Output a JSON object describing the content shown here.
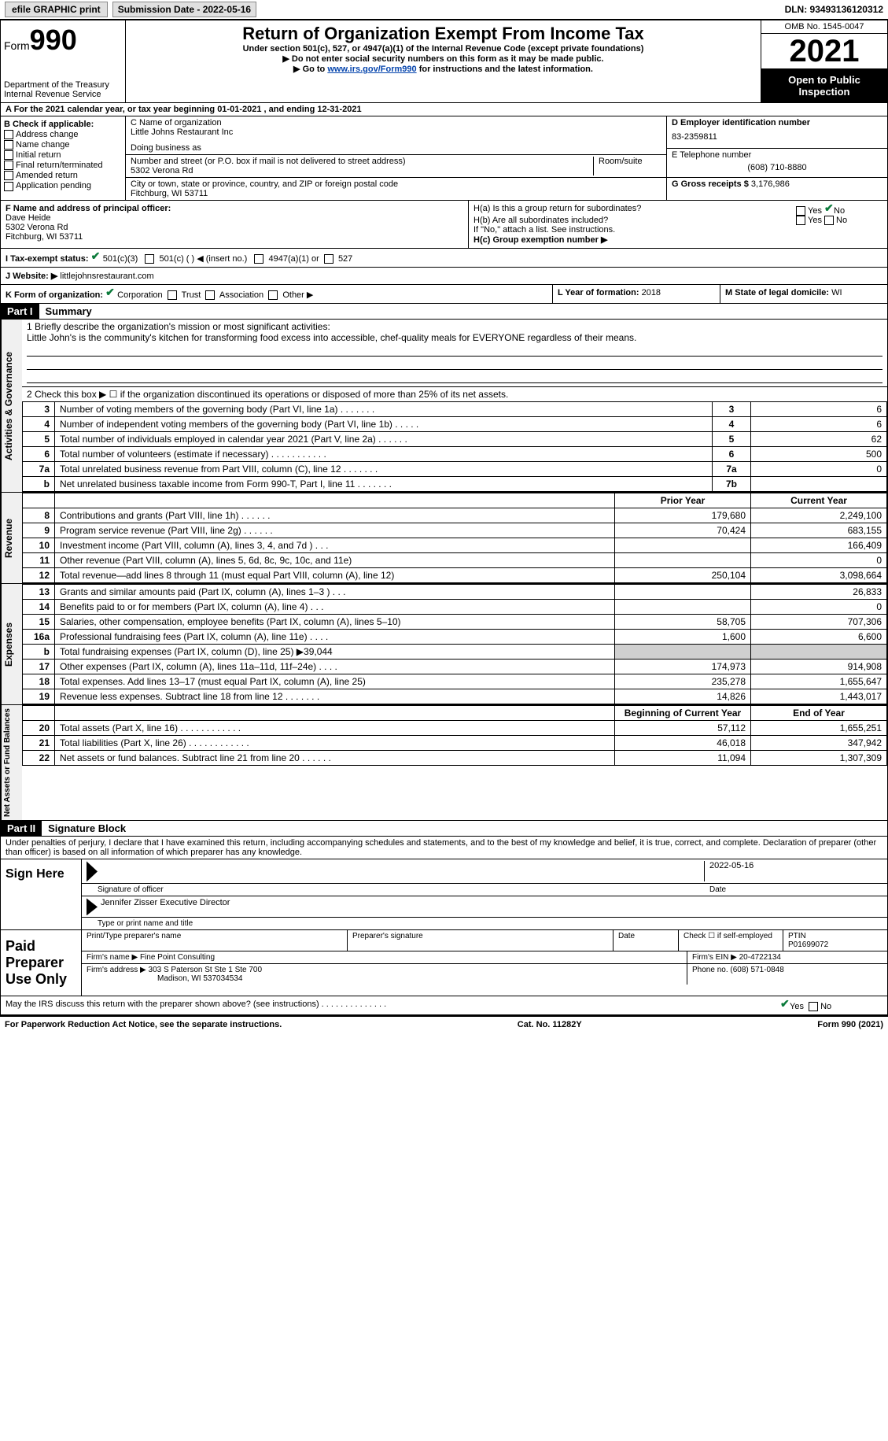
{
  "top": {
    "efile": "efile GRAPHIC print",
    "submission": "Submission Date - 2022-05-16",
    "dln": "DLN: 93493136120312"
  },
  "header": {
    "form_word": "Form",
    "form_num": "990",
    "dept": "Department of the Treasury",
    "irs": "Internal Revenue Service",
    "title": "Return of Organization Exempt From Income Tax",
    "sub1": "Under section 501(c), 527, or 4947(a)(1) of the Internal Revenue Code (except private foundations)",
    "sub2": "▶ Do not enter social security numbers on this form as it may be made public.",
    "sub3_a": "▶ Go to ",
    "sub3_link": "www.irs.gov/Form990",
    "sub3_b": " for instructions and the latest information.",
    "omb": "OMB No. 1545-0047",
    "year": "2021",
    "inspect": "Open to Public Inspection"
  },
  "row_a": "A For the 2021 calendar year, or tax year beginning 01-01-2021    , and ending 12-31-2021",
  "b": {
    "label": "B Check if applicable:",
    "items": [
      "Address change",
      "Name change",
      "Initial return",
      "Final return/terminated",
      "Amended return",
      "Application pending"
    ]
  },
  "c": {
    "name_lbl": "C Name of organization",
    "name": "Little Johns Restaurant Inc",
    "dba_lbl": "Doing business as",
    "dba": "",
    "addr_lbl": "Number and street (or P.O. box if mail is not delivered to street address)",
    "room_lbl": "Room/suite",
    "addr": "5302 Verona Rd",
    "city_lbl": "City or town, state or province, country, and ZIP or foreign postal code",
    "city": "Fitchburg, WI  53711"
  },
  "d": {
    "ein_lbl": "D Employer identification number",
    "ein": "83-2359811",
    "tel_lbl": "E Telephone number",
    "tel": "(608) 710-8880",
    "gross_lbl": "G Gross receipts $",
    "gross": "3,176,986"
  },
  "f": {
    "lbl": "F  Name and address of principal officer:",
    "name": "Dave Heide",
    "addr1": "5302 Verona Rd",
    "addr2": "Fitchburg, WI  53711"
  },
  "h": {
    "a_lbl": "H(a)  Is this a group return for subordinates?",
    "b_lbl": "H(b)  Are all subordinates included?",
    "b_note": "If \"No,\" attach a list. See instructions.",
    "c_lbl": "H(c)  Group exemption number ▶",
    "yes": "Yes",
    "no": "No"
  },
  "i": {
    "lbl": "I    Tax-exempt status:",
    "opt1": "501(c)(3)",
    "opt2": "501(c) (  ) ◀ (insert no.)",
    "opt3": "4947(a)(1) or",
    "opt4": "527"
  },
  "j": {
    "lbl": "J   Website: ▶",
    "val": "littlejohnsrestaurant.com"
  },
  "k": {
    "lbl": "K Form of organization:",
    "opts": [
      "Corporation",
      "Trust",
      "Association",
      "Other ▶"
    ],
    "l_lbl": "L Year of formation:",
    "l_val": "2018",
    "m_lbl": "M State of legal domicile:",
    "m_val": "WI"
  },
  "part1": {
    "hdr": "Part I",
    "title": "Summary",
    "line1_lbl": "1  Briefly describe the organization's mission or most significant activities:",
    "line1_val": "Little John's is the community's kitchen for transforming food excess into accessible, chef-quality meals for EVERYONE regardless of their means.",
    "line2": "2   Check this box ▶ ☐  if the organization discontinued its operations or disposed of more than 25% of its net assets.",
    "vert_ag": "Activities & Governance",
    "vert_rev": "Revenue",
    "vert_exp": "Expenses",
    "vert_net": "Net Assets or Fund Balances",
    "rows_ag": [
      {
        "n": "3",
        "d": "Number of voting members of the governing body (Part VI, line 1a)   .    .    .    .    .    .    .",
        "box": "3",
        "v": "6"
      },
      {
        "n": "4",
        "d": "Number of independent voting members of the governing body (Part VI, line 1b)   .    .    .    .    .",
        "box": "4",
        "v": "6"
      },
      {
        "n": "5",
        "d": "Total number of individuals employed in calendar year 2021 (Part V, line 2a)   .    .    .    .    .    .",
        "box": "5",
        "v": "62"
      },
      {
        "n": "6",
        "d": "Total number of volunteers (estimate if necessary)    .    .    .    .    .    .    .    .    .    .    .",
        "box": "6",
        "v": "500"
      },
      {
        "n": "7a",
        "d": "Total unrelated business revenue from Part VIII, column (C), line 12   .    .    .    .    .    .    .",
        "box": "7a",
        "v": "0"
      },
      {
        "n": "b",
        "d": "Net unrelated business taxable income from Form 990-T, Part I, line 11   .    .    .    .    .    .    .",
        "box": "7b",
        "v": ""
      }
    ],
    "col_prior": "Prior Year",
    "col_current": "Current Year",
    "rows_rev": [
      {
        "n": "8",
        "d": "Contributions and grants (Part VIII, line 1h)    .    .    .    .    .    .",
        "p": "179,680",
        "c": "2,249,100"
      },
      {
        "n": "9",
        "d": "Program service revenue (Part VIII, line 2g)    .    .    .    .    .    .",
        "p": "70,424",
        "c": "683,155"
      },
      {
        "n": "10",
        "d": "Investment income (Part VIII, column (A), lines 3, 4, and 7d )    .    .    .",
        "p": "",
        "c": "166,409"
      },
      {
        "n": "11",
        "d": "Other revenue (Part VIII, column (A), lines 5, 6d, 8c, 9c, 10c, and 11e)",
        "p": "",
        "c": "0"
      },
      {
        "n": "12",
        "d": "Total revenue—add lines 8 through 11 (must equal Part VIII, column (A), line 12)",
        "p": "250,104",
        "c": "3,098,664"
      }
    ],
    "rows_exp": [
      {
        "n": "13",
        "d": "Grants and similar amounts paid (Part IX, column (A), lines 1–3 )   .    .    .",
        "p": "",
        "c": "26,833"
      },
      {
        "n": "14",
        "d": "Benefits paid to or for members (Part IX, column (A), line 4)   .    .    .",
        "p": "",
        "c": "0"
      },
      {
        "n": "15",
        "d": "Salaries, other compensation, employee benefits (Part IX, column (A), lines 5–10)",
        "p": "58,705",
        "c": "707,306"
      },
      {
        "n": "16a",
        "d": "Professional fundraising fees (Part IX, column (A), line 11e)    .    .    .    .",
        "p": "1,600",
        "c": "6,600"
      },
      {
        "n": "b",
        "d": "Total fundraising expenses (Part IX, column (D), line 25) ▶39,044",
        "p": "__grey__",
        "c": "__grey__"
      },
      {
        "n": "17",
        "d": "Other expenses (Part IX, column (A), lines 11a–11d, 11f–24e)    .    .    .    .",
        "p": "174,973",
        "c": "914,908"
      },
      {
        "n": "18",
        "d": "Total expenses. Add lines 13–17 (must equal Part IX, column (A), line 25)",
        "p": "235,278",
        "c": "1,655,647"
      },
      {
        "n": "19",
        "d": "Revenue less expenses. Subtract line 18 from line 12   .    .    .    .    .    .    .",
        "p": "14,826",
        "c": "1,443,017"
      }
    ],
    "col_beg": "Beginning of Current Year",
    "col_end": "End of Year",
    "rows_net": [
      {
        "n": "20",
        "d": "Total assets (Part X, line 16)   .    .    .    .    .    .    .    .    .    .    .    .",
        "p": "57,112",
        "c": "1,655,251"
      },
      {
        "n": "21",
        "d": "Total liabilities (Part X, line 26)   .    .    .    .    .    .    .    .    .    .    .    .",
        "p": "46,018",
        "c": "347,942"
      },
      {
        "n": "22",
        "d": "Net assets or fund balances. Subtract line 21 from line 20   .    .    .    .    .    .",
        "p": "11,094",
        "c": "1,307,309"
      }
    ]
  },
  "part2": {
    "hdr": "Part II",
    "title": "Signature Block",
    "decl": "Under penalties of perjury, I declare that I have examined this return, including accompanying schedules and statements, and to the best of my knowledge and belief, it is true, correct, and complete. Declaration of preparer (other than officer) is based on all information of which preparer has any knowledge.",
    "sign_here": "Sign Here",
    "sig_officer": "Signature of officer",
    "sig_date": "2022-05-16",
    "date_lbl": "Date",
    "officer_name": "Jennifer Zisser  Executive Director",
    "type_name": "Type or print name and title",
    "paid": "Paid Preparer Use Only",
    "prep_name_lbl": "Print/Type preparer's name",
    "prep_sig_lbl": "Preparer's signature",
    "check_self": "Check ☐ if self-employed",
    "ptin_lbl": "PTIN",
    "ptin": "P01699072",
    "firm_name_lbl": "Firm's name     ▶",
    "firm_name": "Fine Point Consulting",
    "firm_ein_lbl": "Firm's EIN ▶",
    "firm_ein": "20-4722134",
    "firm_addr_lbl": "Firm's address ▶",
    "firm_addr1": "303 S Paterson St Ste 1 Ste 700",
    "firm_addr2": "Madison, WI  537034534",
    "phone_lbl": "Phone no.",
    "phone": "(608) 571-0848",
    "discuss": "May the IRS discuss this return with the preparer shown above? (see instructions)    .    .    .    .    .    .    .    .    .    .    .    .    .    ."
  },
  "footer": {
    "left": "For Paperwork Reduction Act Notice, see the separate instructions.",
    "mid": "Cat. No. 11282Y",
    "right": "Form 990 (2021)"
  },
  "colors": {
    "link": "#0645ad",
    "check": "#0a7a3a"
  }
}
